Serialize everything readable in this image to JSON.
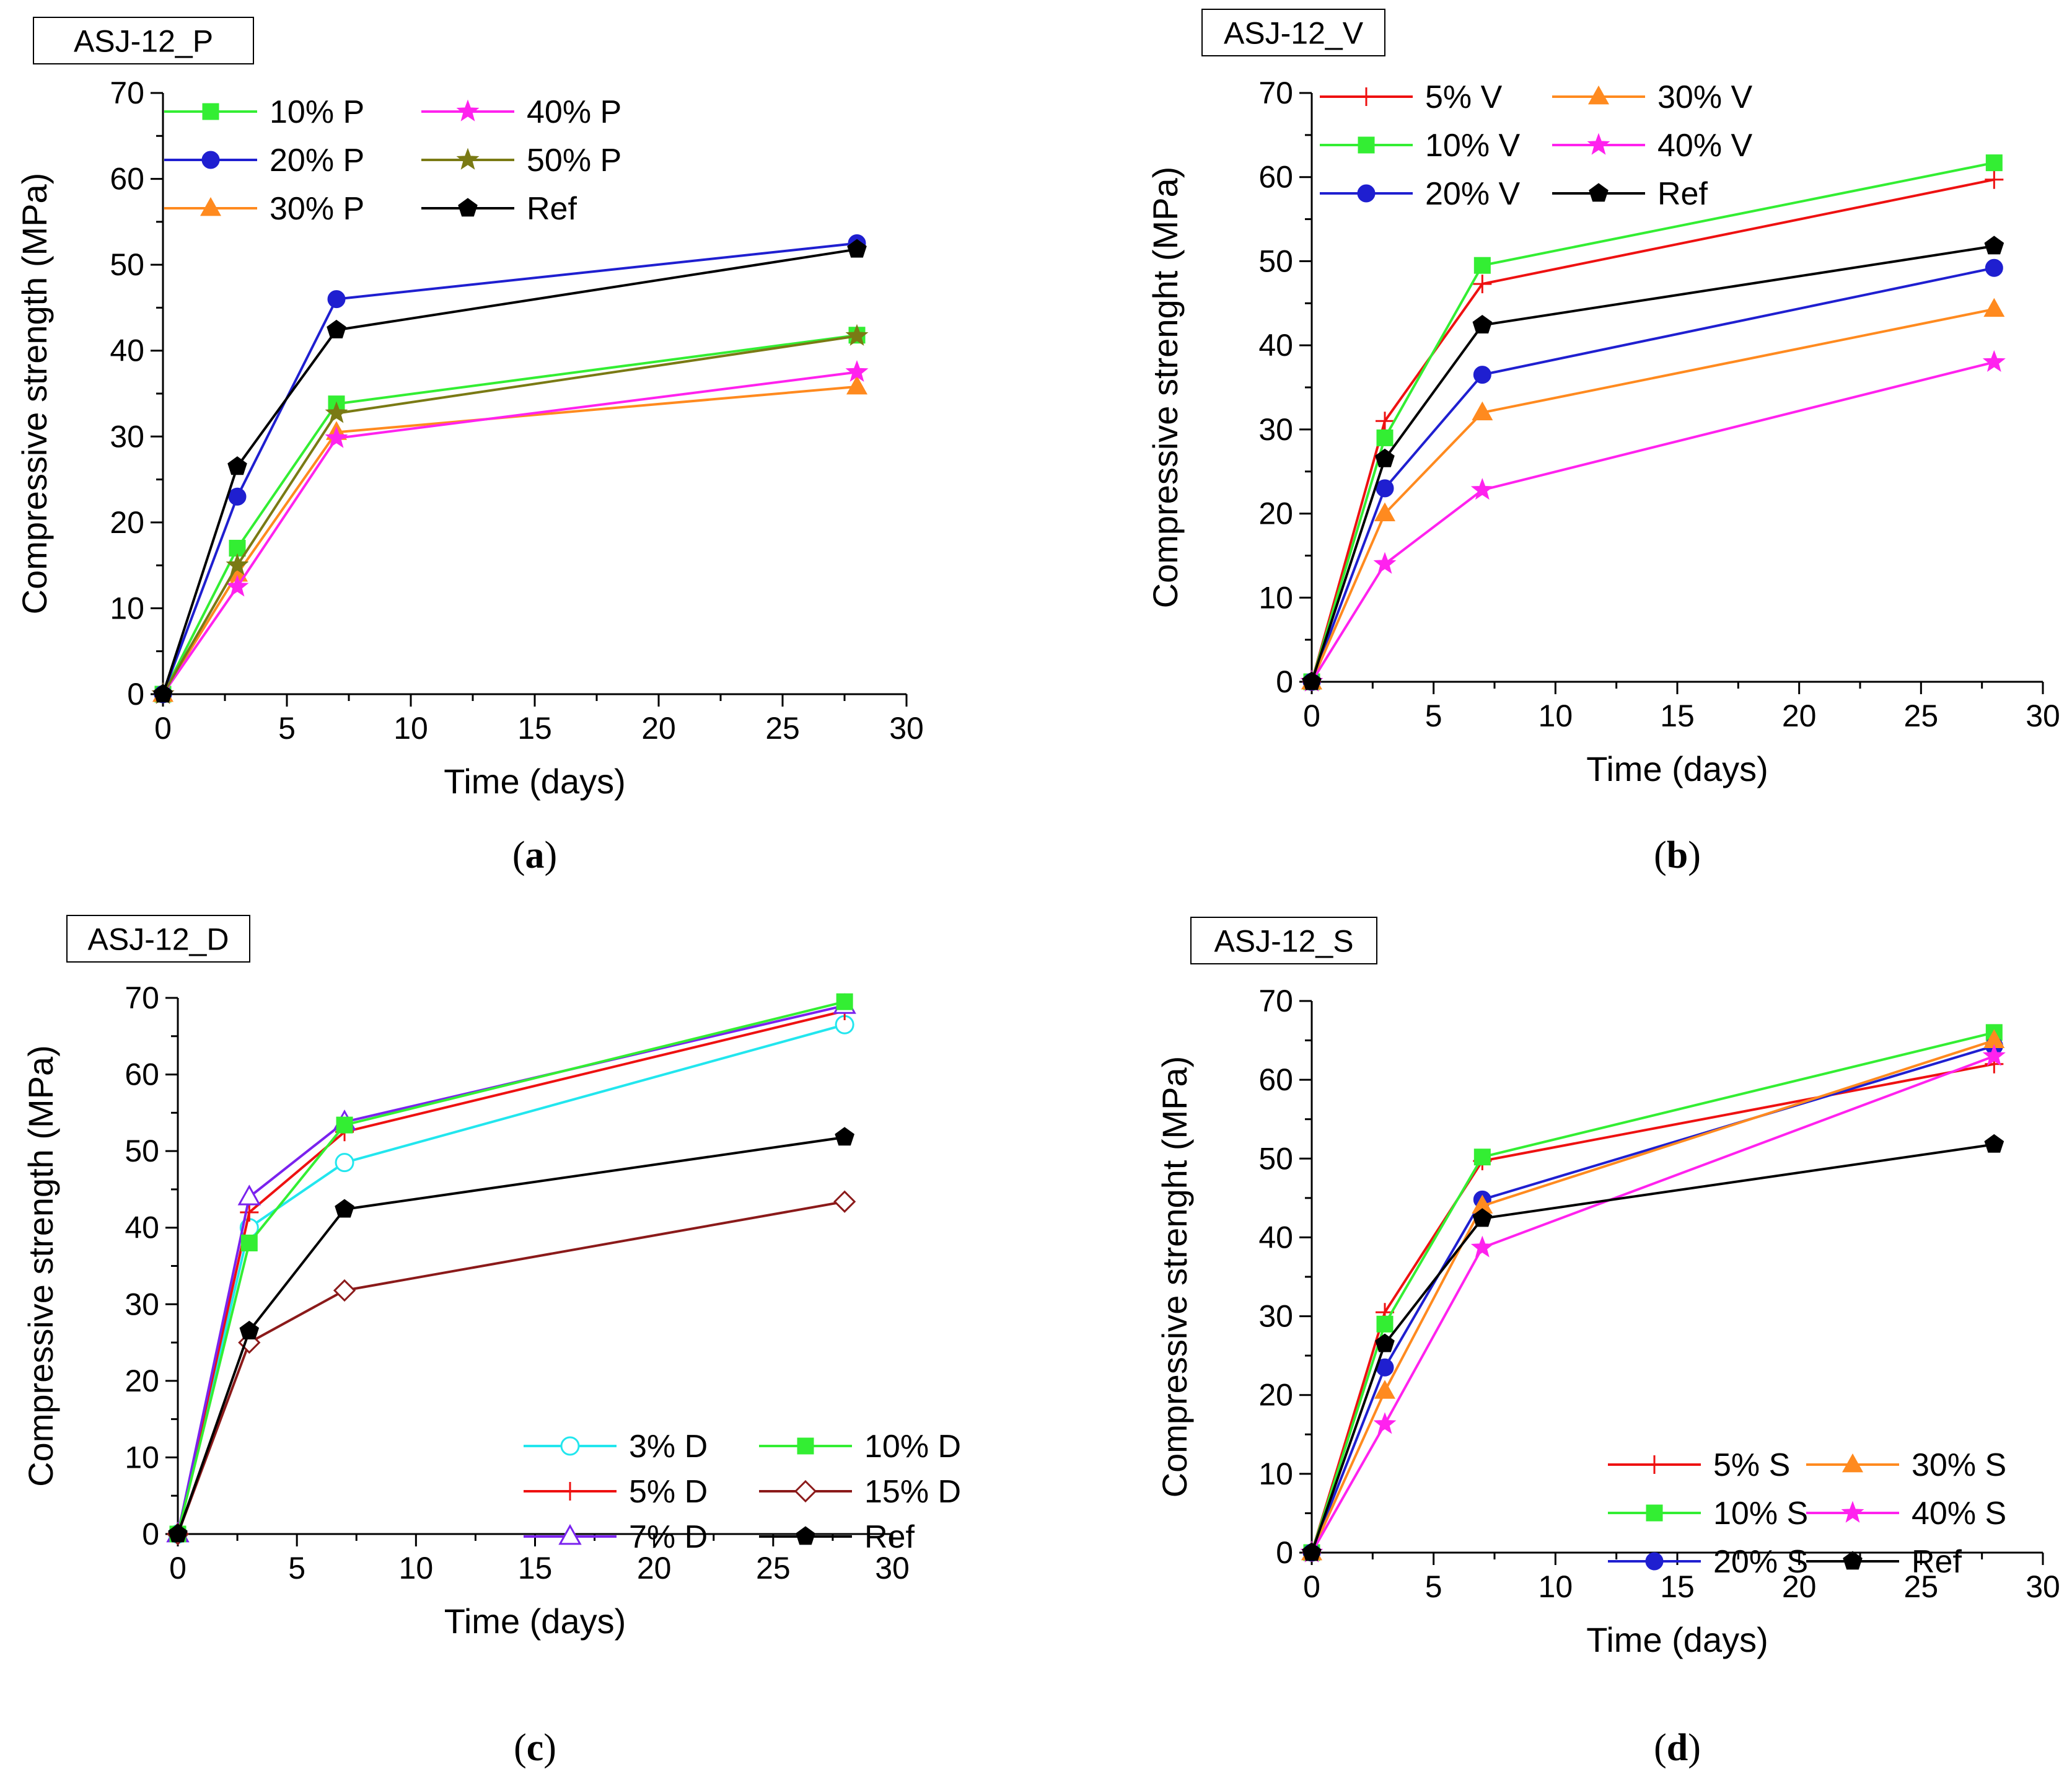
{
  "chart_data": [
    {
      "type": "line",
      "id": "a",
      "title": "ASJ-12_P",
      "caption_letter": "a",
      "xlabel": "Time (days)",
      "ylabel": "Compressive strength (MPa)",
      "xlim": [
        0,
        30
      ],
      "ylim": [
        0,
        70
      ],
      "xticks": [
        0,
        5,
        10,
        15,
        20,
        25,
        30
      ],
      "yticks": [
        0,
        10,
        20,
        30,
        40,
        50,
        60,
        70
      ],
      "grid": false,
      "legend_position": "top-left",
      "legend_columns": 2,
      "x": [
        0,
        3,
        7,
        28
      ],
      "series": [
        {
          "name": "10% P",
          "values": [
            0,
            17,
            33.8,
            41.8
          ],
          "color": "#33ee33",
          "marker": "square"
        },
        {
          "name": "20% P",
          "values": [
            0,
            23,
            46,
            52.5
          ],
          "color": "#1f1fd0",
          "marker": "circle"
        },
        {
          "name": "30% P",
          "values": [
            0,
            14,
            30.5,
            35.8
          ],
          "color": "#ff8a1f",
          "marker": "triangle"
        },
        {
          "name": "40% P",
          "values": [
            0,
            12.5,
            29.8,
            37.5
          ],
          "color": "#ff22ee",
          "marker": "star"
        },
        {
          "name": "50% P",
          "values": [
            0,
            15,
            32.7,
            41.7
          ],
          "color": "#7a7a14",
          "marker": "star"
        },
        {
          "name": "Ref",
          "values": [
            0,
            26.5,
            42.4,
            51.8
          ],
          "color": "#000000",
          "marker": "pentagon"
        }
      ]
    },
    {
      "type": "line",
      "id": "b",
      "title": "ASJ-12_V",
      "caption_letter": "b",
      "xlabel": "Time (days)",
      "ylabel": "Compressive strenght (MPa)",
      "xlim": [
        0,
        30
      ],
      "ylim": [
        0,
        70
      ],
      "xticks": [
        0,
        5,
        10,
        15,
        20,
        25,
        30
      ],
      "yticks": [
        0,
        10,
        20,
        30,
        40,
        50,
        60,
        70
      ],
      "grid": false,
      "legend_position": "top-left",
      "legend_columns": 2,
      "x": [
        0,
        3,
        7,
        28
      ],
      "series": [
        {
          "name": "5% V",
          "values": [
            0,
            31,
            47.3,
            59.7
          ],
          "color": "#ee1111",
          "marker": "plus"
        },
        {
          "name": "10% V",
          "values": [
            0,
            29,
            49.5,
            61.7
          ],
          "color": "#33ee33",
          "marker": "square"
        },
        {
          "name": "20% V",
          "values": [
            0,
            23,
            36.5,
            49.2
          ],
          "color": "#1f1fd0",
          "marker": "circle"
        },
        {
          "name": "30% V",
          "values": [
            0,
            20,
            32,
            44.3
          ],
          "color": "#ff8a1f",
          "marker": "triangle"
        },
        {
          "name": "40% V",
          "values": [
            0,
            14,
            22.8,
            38
          ],
          "color": "#ff22ee",
          "marker": "star"
        },
        {
          "name": "Ref",
          "values": [
            0,
            26.5,
            42.4,
            51.8
          ],
          "color": "#000000",
          "marker": "pentagon"
        }
      ]
    },
    {
      "type": "line",
      "id": "c",
      "title": "ASJ-12_D",
      "caption_letter": "c",
      "xlabel": "Time (days)",
      "ylabel": "Compressive strength (MPa)",
      "xlim": [
        0,
        30
      ],
      "ylim": [
        0,
        70
      ],
      "xticks": [
        0,
        5,
        10,
        15,
        20,
        25,
        30
      ],
      "yticks": [
        0,
        10,
        20,
        30,
        40,
        50,
        60,
        70
      ],
      "grid": false,
      "legend_position": "bottom-right",
      "legend_columns": 2,
      "x": [
        0,
        3,
        7,
        28
      ],
      "series": [
        {
          "name": "3% D",
          "values": [
            0,
            40,
            48.5,
            66.5
          ],
          "color": "#22e6ee",
          "marker": "circle-open"
        },
        {
          "name": "5% D",
          "values": [
            0,
            42,
            52.5,
            68.3
          ],
          "color": "#ee1111",
          "marker": "plus"
        },
        {
          "name": "7% D",
          "values": [
            0,
            44,
            53.8,
            69
          ],
          "color": "#7a22ee",
          "marker": "triangle-open"
        },
        {
          "name": "10% D",
          "values": [
            0,
            38,
            53.4,
            69.5
          ],
          "color": "#33ee33",
          "marker": "square"
        },
        {
          "name": "15% D",
          "values": [
            0,
            25,
            31.8,
            43.4
          ],
          "color": "#8b1a1a",
          "marker": "diamond-open"
        },
        {
          "name": "Ref",
          "values": [
            0,
            26.5,
            42.4,
            51.8
          ],
          "color": "#000000",
          "marker": "pentagon"
        }
      ]
    },
    {
      "type": "line",
      "id": "d",
      "title": "ASJ-12_S",
      "caption_letter": "d",
      "xlabel": "Time (days)",
      "ylabel": "Compressive strenght (MPa)",
      "xlim": [
        0,
        30
      ],
      "ylim": [
        0,
        70
      ],
      "xticks": [
        0,
        5,
        10,
        15,
        20,
        25,
        30
      ],
      "yticks": [
        0,
        10,
        20,
        30,
        40,
        50,
        60,
        70
      ],
      "grid": false,
      "legend_position": "bottom-right",
      "legend_columns": 2,
      "x": [
        0,
        3,
        7,
        28
      ],
      "series": [
        {
          "name": "5% S",
          "values": [
            0,
            30.5,
            49.7,
            62
          ],
          "color": "#ee1111",
          "marker": "plus"
        },
        {
          "name": "10% S",
          "values": [
            0,
            29,
            50.2,
            66
          ],
          "color": "#33ee33",
          "marker": "square"
        },
        {
          "name": "20% S",
          "values": [
            0,
            23.5,
            44.8,
            64.3
          ],
          "color": "#1f1fd0",
          "marker": "circle"
        },
        {
          "name": "30% S",
          "values": [
            0,
            20.5,
            44,
            65
          ],
          "color": "#ff8a1f",
          "marker": "triangle"
        },
        {
          "name": "40% S",
          "values": [
            0,
            16.3,
            38.7,
            63
          ],
          "color": "#ff22ee",
          "marker": "star"
        },
        {
          "name": "Ref",
          "values": [
            0,
            26.5,
            42.4,
            51.8
          ],
          "color": "#000000",
          "marker": "pentagon"
        }
      ]
    }
  ]
}
